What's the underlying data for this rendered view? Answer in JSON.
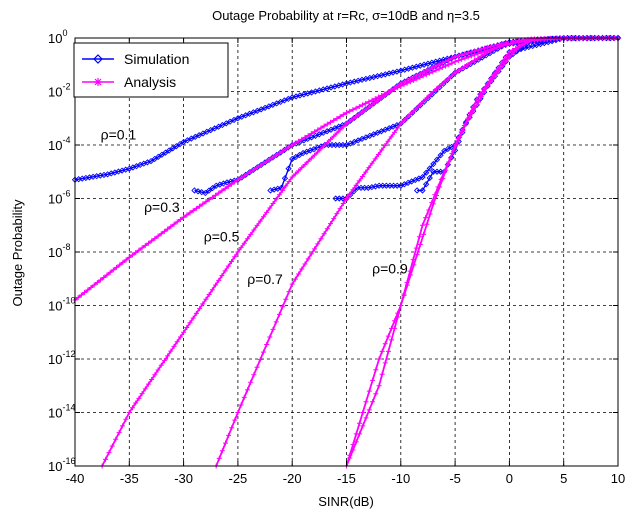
{
  "chart_data": {
    "type": "line",
    "title": "Outage Probability at r=Rc, σ=10dB and η=3.5",
    "xlabel": "SINR(dB)",
    "ylabel": "Outage Probability",
    "xlim": [
      -40,
      10
    ],
    "ylim": [
      1e-16,
      1
    ],
    "yscale": "log",
    "grid": true,
    "legend_position": "top-left",
    "x_ticks": [
      "-40",
      "-35",
      "-30",
      "-25",
      "-20",
      "-15",
      "-10",
      "-5",
      "0",
      "5",
      "10"
    ],
    "y_tick_base": "10",
    "y_tick_exponents": [
      "0",
      "-2",
      "-4",
      "-6",
      "-8",
      "-10",
      "-12",
      "-14",
      "-16"
    ],
    "legend": [
      {
        "label": "Simulation",
        "color": "#0000ff",
        "marker": "diamond"
      },
      {
        "label": "Analysis",
        "color": "#ff00ff",
        "marker": "star"
      }
    ],
    "annotations": [
      {
        "text": "ρ=0.1",
        "x": -36,
        "logy": -3.8
      },
      {
        "text": "ρ=0.3",
        "x": -32,
        "logy": -6.5
      },
      {
        "text": "ρ=0.5",
        "x": -26.5,
        "logy": -7.6
      },
      {
        "text": "ρ=0.7",
        "x": -22.5,
        "logy": -9.2
      },
      {
        "text": "ρ=0.9",
        "x": -11,
        "logy": -8.8
      }
    ],
    "series": [
      {
        "name": "Analysis",
        "rho": "0.1",
        "x": [
          -40,
          -35,
          -30,
          -25,
          -20,
          -15,
          -10,
          -5,
          -2,
          0,
          2,
          5,
          10
        ],
        "y": [
          1.6e-10,
          6.3e-09,
          2e-07,
          5e-06,
          0.0001,
          0.0016,
          0.016,
          0.13,
          0.35,
          0.6,
          0.85,
          0.98,
          1.0
        ]
      },
      {
        "name": "Analysis",
        "rho": "0.3",
        "x": [
          -37.5,
          -35,
          -30,
          -25,
          -20,
          -15,
          -10,
          -5,
          -2,
          0,
          2,
          5,
          10
        ],
        "y": [
          1e-16,
          1e-14,
          1e-11,
          1e-08,
          6.3e-06,
          0.00063,
          0.02,
          0.2,
          0.45,
          0.7,
          0.9,
          0.99,
          1.0
        ]
      },
      {
        "name": "Analysis",
        "rho": "0.5",
        "x": [
          -27,
          -25,
          -20,
          -15,
          -10,
          -7,
          -5,
          -2,
          0,
          2,
          5,
          10
        ],
        "y": [
          1e-16,
          1e-14,
          6.3e-10,
          1e-06,
          0.00063,
          0.01,
          0.05,
          0.3,
          0.7,
          0.92,
          0.995,
          1.0
        ]
      },
      {
        "name": "Analysis",
        "rho": "0.7",
        "x": [
          -15,
          -12,
          -10,
          -7,
          -5,
          -3,
          -2,
          0,
          2,
          5,
          10
        ],
        "y": [
          1e-16,
          1e-12,
          1e-10,
          6.3e-07,
          0.0001,
          0.005,
          0.02,
          0.3,
          0.85,
          0.99,
          1.0
        ]
      },
      {
        "name": "Analysis",
        "rho": "0.9",
        "x": [
          -15,
          -12,
          -10,
          -8,
          -6,
          -4,
          -2,
          0,
          1,
          2,
          5,
          10
        ],
        "y": [
          1e-16,
          1e-13,
          1e-10,
          1e-07,
          1e-05,
          0.00063,
          0.016,
          0.2,
          0.5,
          0.8,
          0.99,
          1.0
        ]
      },
      {
        "name": "Simulation",
        "rho": "0.1",
        "x": [
          -40,
          -37,
          -35,
          -33,
          -30,
          -25,
          -20,
          -15,
          -10,
          -5,
          0,
          5,
          10
        ],
        "y": [
          5e-06,
          8e-06,
          1.3e-05,
          2.5e-05,
          0.00013,
          0.001,
          0.006,
          0.02,
          0.06,
          0.2,
          0.6,
          0.98,
          1.0
        ]
      },
      {
        "name": "Simulation",
        "rho": "0.3",
        "x": [
          -29,
          -28,
          -27,
          -26,
          -25,
          -20,
          -15,
          -10,
          -5,
          0,
          5,
          10
        ],
        "y": [
          2e-06,
          1.6e-06,
          3e-06,
          4e-06,
          5e-06,
          0.0001,
          0.00063,
          0.02,
          0.2,
          0.7,
          0.99,
          1.0
        ]
      },
      {
        "name": "Simulation",
        "rho": "0.5",
        "x": [
          -22,
          -21,
          -20,
          -19,
          -18,
          -17,
          -15,
          -10,
          -5,
          0,
          5,
          10
        ],
        "y": [
          2e-06,
          2.5e-06,
          3e-05,
          5e-05,
          7e-05,
          0.0001,
          0.0001,
          0.00063,
          0.05,
          0.7,
          0.995,
          1.0
        ]
      },
      {
        "name": "Simulation",
        "rho": "0.7",
        "x": [
          -16,
          -15,
          -14,
          -13,
          -12,
          -11,
          -10,
          -8,
          -6,
          -5,
          -3,
          0,
          5,
          10
        ],
        "y": [
          1e-06,
          1e-06,
          2.5e-06,
          2.5e-06,
          3e-06,
          3e-06,
          3e-06,
          6.3e-06,
          6e-05,
          0.0001,
          0.005,
          0.3,
          0.99,
          1.0
        ]
      },
      {
        "name": "Simulation",
        "rho": "0.9",
        "x": [
          -8.5,
          -8,
          -7,
          -6,
          -5,
          -4,
          -2,
          0,
          2,
          5,
          10
        ],
        "y": [
          2e-06,
          2e-06,
          1e-05,
          1e-05,
          6.3e-05,
          0.00063,
          0.016,
          0.2,
          0.8,
          0.99,
          1.0
        ]
      }
    ]
  }
}
